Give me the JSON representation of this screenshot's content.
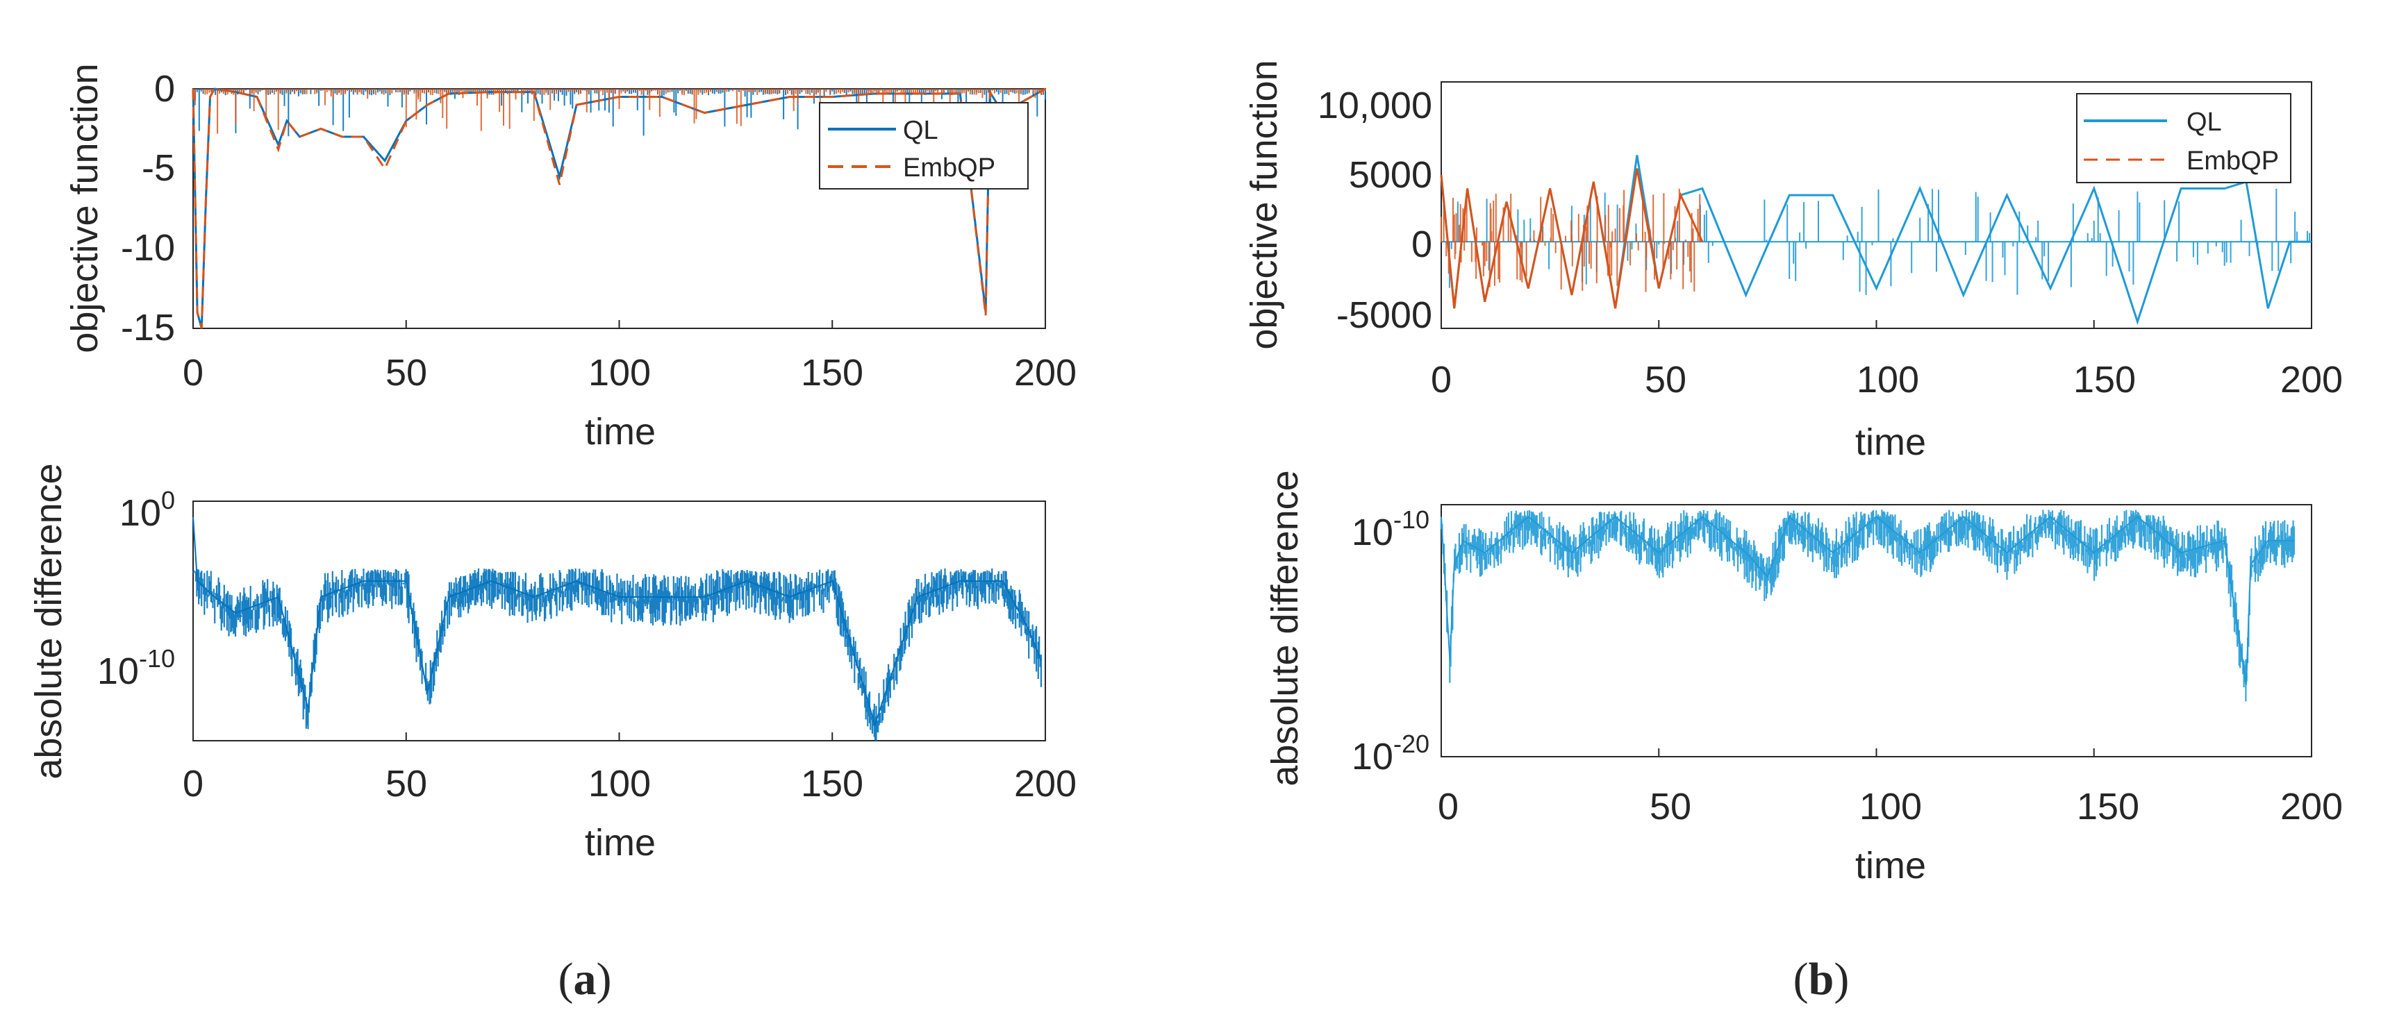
{
  "panels": [
    {
      "label_open": "(",
      "label_letter": "a",
      "label_close": ")",
      "top": {
        "ylabel": "objective function",
        "xlabel": "time",
        "yticks": [
          "-15",
          "-10",
          "-5",
          "0"
        ],
        "xticks": [
          "0",
          "50",
          "100",
          "150",
          "200"
        ],
        "legend": [
          "QL",
          "EmbQP"
        ]
      },
      "bottom": {
        "ylabel": "absolute difference",
        "xlabel": "time",
        "yticks": [
          {
            "base": "10",
            "exp": "0"
          },
          {
            "base": "10",
            "exp": "-10"
          }
        ],
        "xticks": [
          "0",
          "50",
          "100",
          "150",
          "200"
        ]
      }
    },
    {
      "label_open": "(",
      "label_letter": "b",
      "label_close": ")",
      "top": {
        "ylabel": "objective function",
        "xlabel": "time",
        "yticks": [
          "-5000",
          "0",
          "5000",
          "10,000"
        ],
        "xticks": [
          "0",
          "50",
          "100",
          "150",
          "200"
        ],
        "legend": [
          "QL",
          "EmbQP"
        ]
      },
      "bottom": {
        "ylabel": "absolute difference",
        "xlabel": "time",
        "yticks": [
          {
            "base": "10",
            "exp": "-10"
          },
          {
            "base": "10",
            "exp": "-20"
          }
        ],
        "xticks": [
          "0",
          "50",
          "100",
          "150",
          "200"
        ]
      }
    }
  ],
  "colors": {
    "QL": "#0072BD",
    "QL_b": "#1f9ad6",
    "EmbQP": "#D95319",
    "axis": "#262626"
  },
  "chart_data": [
    {
      "panel": "a-top",
      "type": "line",
      "xlim": [
        0,
        200
      ],
      "ylim": [
        -15,
        0
      ],
      "series": [
        {
          "name": "QL",
          "style": "solid",
          "x": [
            0,
            1,
            2,
            3,
            4,
            5,
            10,
            15,
            20,
            22,
            25,
            30,
            35,
            40,
            45,
            50,
            55,
            60,
            70,
            80,
            86,
            90,
            100,
            110,
            120,
            130,
            140,
            150,
            160,
            170,
            180,
            186,
            187,
            190,
            200
          ],
          "y": [
            0,
            -14,
            -15,
            -7,
            -0.5,
            0,
            -0.2,
            -0.5,
            -3.5,
            -2,
            -3,
            -2.5,
            -3,
            -3,
            -4.5,
            -2,
            -1,
            -0.3,
            -0.2,
            -0.2,
            -5.5,
            -1,
            -0.5,
            -0.5,
            -1.5,
            -1,
            -0.5,
            -0.5,
            -0.3,
            -0.3,
            -0.3,
            -14,
            -0.2,
            -1.5,
            0
          ]
        },
        {
          "name": "EmbQP",
          "style": "dashed",
          "x": [
            0,
            1,
            2,
            3,
            4,
            5,
            10,
            15,
            20,
            22,
            25,
            30,
            35,
            40,
            45,
            50,
            55,
            60,
            70,
            80,
            86,
            90,
            100,
            110,
            120,
            130,
            140,
            150,
            160,
            170,
            180,
            186,
            187,
            190,
            200
          ],
          "y": [
            0,
            -14,
            -15,
            -7,
            -0.5,
            0,
            -0.2,
            -0.5,
            -3.8,
            -2,
            -3,
            -2.5,
            -3,
            -3,
            -5,
            -2,
            -1,
            -0.3,
            -0.2,
            -0.2,
            -6,
            -1,
            -0.5,
            -0.5,
            -1.5,
            -1,
            -0.5,
            -0.5,
            -0.3,
            -0.3,
            -0.3,
            -14.2,
            -0.2,
            -1.5,
            0
          ]
        }
      ]
    },
    {
      "panel": "a-bottom",
      "type": "line",
      "yscale": "log",
      "xlim": [
        0,
        200
      ],
      "ylim_log10": [
        -15,
        0
      ],
      "series": [
        {
          "name": "QL",
          "x": [
            0,
            1,
            5,
            10,
            20,
            27,
            30,
            40,
            50,
            55,
            60,
            70,
            80,
            90,
            100,
            110,
            120,
            130,
            140,
            150,
            160,
            170,
            180,
            190,
            196,
            199
          ],
          "log10_y": [
            -1,
            -5,
            -6,
            -7,
            -6,
            -13,
            -6,
            -5,
            -5,
            -12,
            -6,
            -5,
            -6,
            -5,
            -6,
            -6,
            -6,
            -5,
            -6,
            -5,
            -14,
            -6,
            -5,
            -5,
            -8,
            -10
          ]
        }
      ]
    },
    {
      "panel": "b-top",
      "type": "line",
      "xlim": [
        0,
        200
      ],
      "ylim": [
        -6500,
        12000
      ],
      "series": [
        {
          "name": "QL",
          "x": [
            0,
            3,
            6,
            10,
            15,
            20,
            25,
            30,
            35,
            40,
            45,
            50,
            55,
            60,
            70,
            80,
            90,
            100,
            110,
            120,
            130,
            140,
            150,
            160,
            170,
            180,
            185,
            190,
            195,
            200
          ],
          "y": [
            5000,
            -5000,
            4000,
            -4500,
            3000,
            -3500,
            4000,
            -4000,
            4500,
            -5000,
            6500,
            -3500,
            3500,
            4000,
            -4000,
            3500,
            3500,
            -3500,
            4000,
            -4000,
            3500,
            -3500,
            4000,
            -6000,
            4000,
            4000,
            4500,
            -5000,
            0,
            0
          ]
        },
        {
          "name": "EmbQP",
          "x": [
            0,
            3,
            6,
            10,
            15,
            20,
            25,
            30,
            35,
            40,
            45,
            50,
            55,
            60
          ],
          "y": [
            5000,
            -5000,
            4000,
            -4500,
            3000,
            -3500,
            4000,
            -4000,
            4500,
            -5000,
            5500,
            -3500,
            3500,
            0
          ]
        }
      ]
    },
    {
      "panel": "b-bottom",
      "type": "line",
      "yscale": "log",
      "xlim": [
        0,
        200
      ],
      "ylim_log10": [
        -20,
        -9.5
      ],
      "series": [
        {
          "name": "QL",
          "x": [
            0,
            2,
            3,
            5,
            10,
            20,
            30,
            40,
            50,
            60,
            70,
            75,
            80,
            90,
            100,
            110,
            120,
            130,
            140,
            150,
            160,
            170,
            180,
            185,
            186,
            190,
            196
          ],
          "log10_y": [
            -10,
            -16,
            -12,
            -11,
            -11.5,
            -10,
            -11.5,
            -10,
            -11.5,
            -10,
            -11.5,
            -12.5,
            -10,
            -11.5,
            -10,
            -11.5,
            -10,
            -11.5,
            -10,
            -11.5,
            -10,
            -11.5,
            -11,
            -17,
            -12,
            -11,
            -11
          ]
        }
      ]
    }
  ]
}
